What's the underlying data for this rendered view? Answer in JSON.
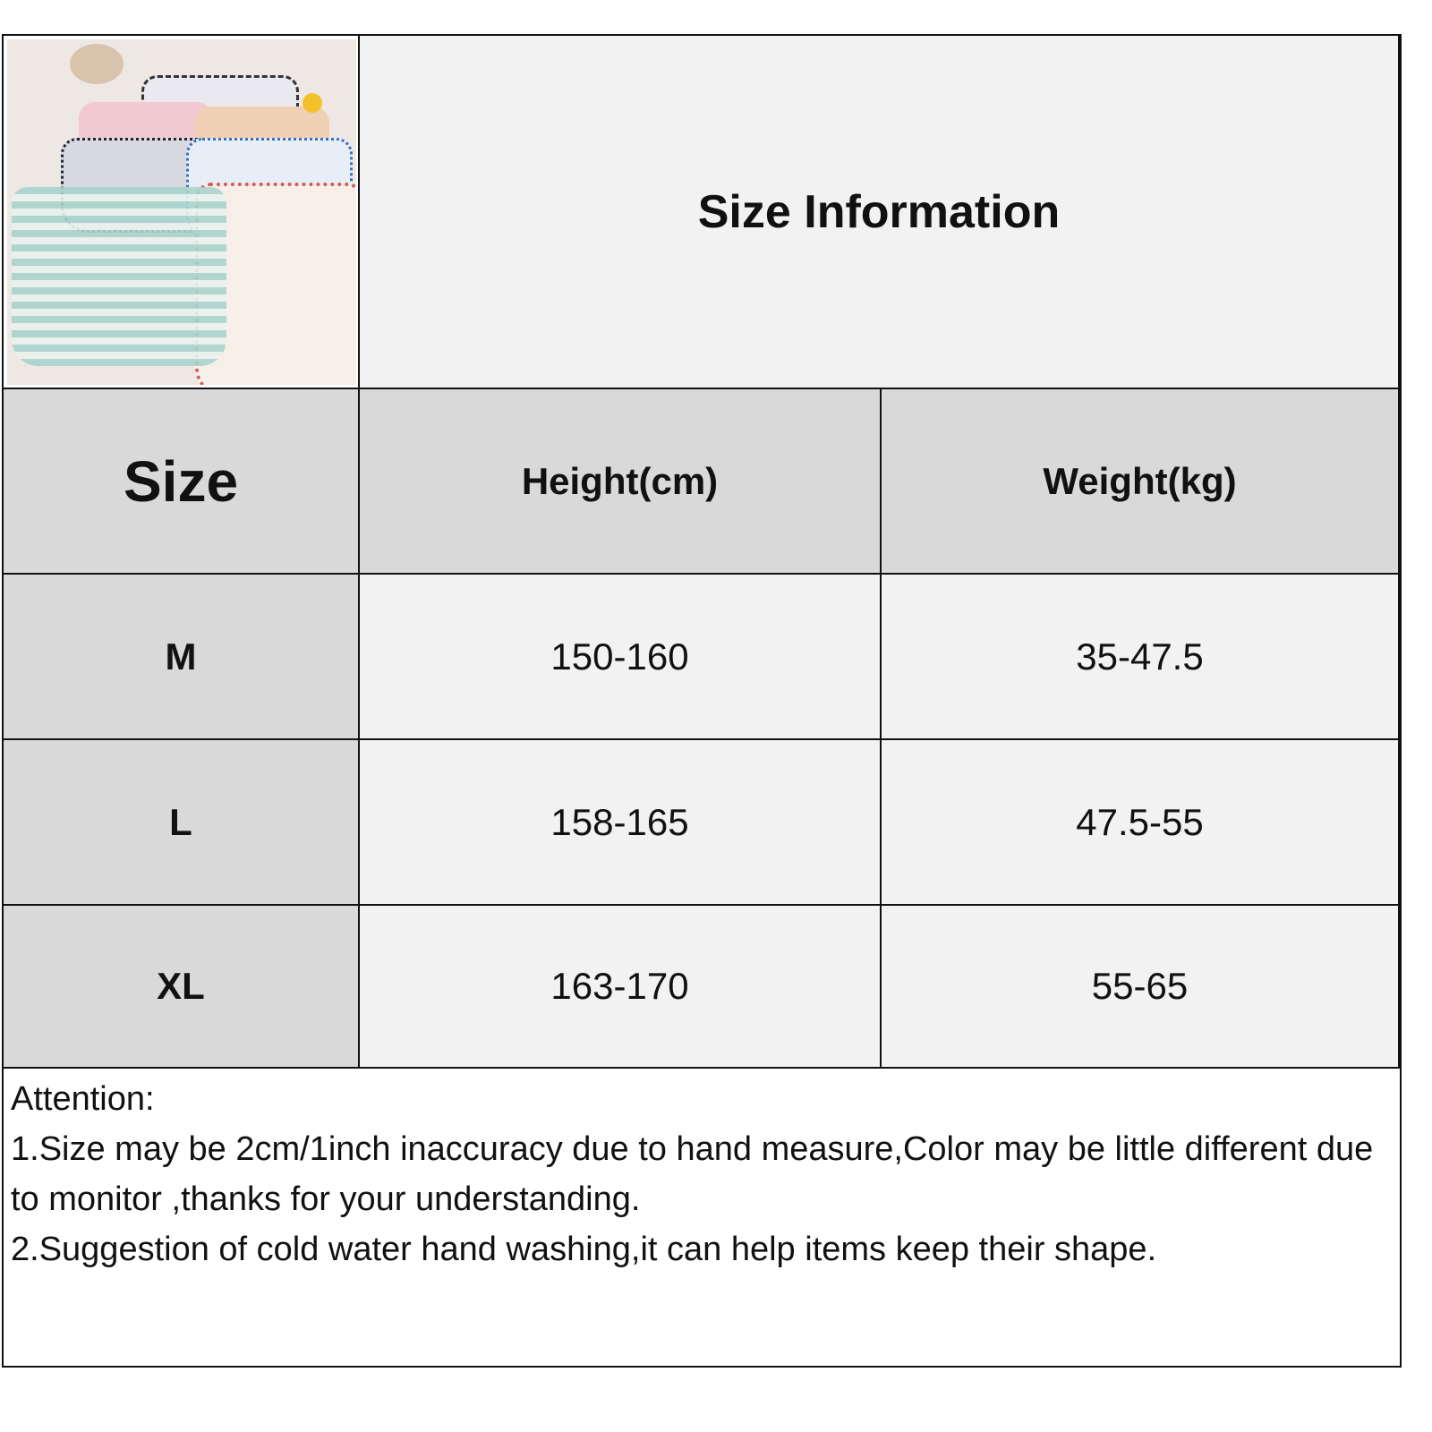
{
  "title": "Size Information",
  "table": {
    "headers": [
      "Size",
      "Height(cm)",
      "Weight(kg)"
    ],
    "rows": [
      {
        "size": "M",
        "height": "150-160",
        "weight": "35-47.5"
      },
      {
        "size": "L",
        "height": "158-165",
        "weight": "47.5-55"
      },
      {
        "size": "XL",
        "height": "163-170",
        "weight": "55-65"
      }
    ]
  },
  "notes": {
    "heading": "Attention:",
    "line1": "1.Size may be 2cm/1inch inaccuracy due to hand measure,Color may be little different due to monitor ,thanks for your understanding.",
    "line2": "2.Suggestion of cold water hand washing,it can help items keep their shape."
  },
  "colors": {
    "header_bg": "#d9d9d9",
    "cell_bg": "#f2f2f2",
    "border": "#111111"
  }
}
